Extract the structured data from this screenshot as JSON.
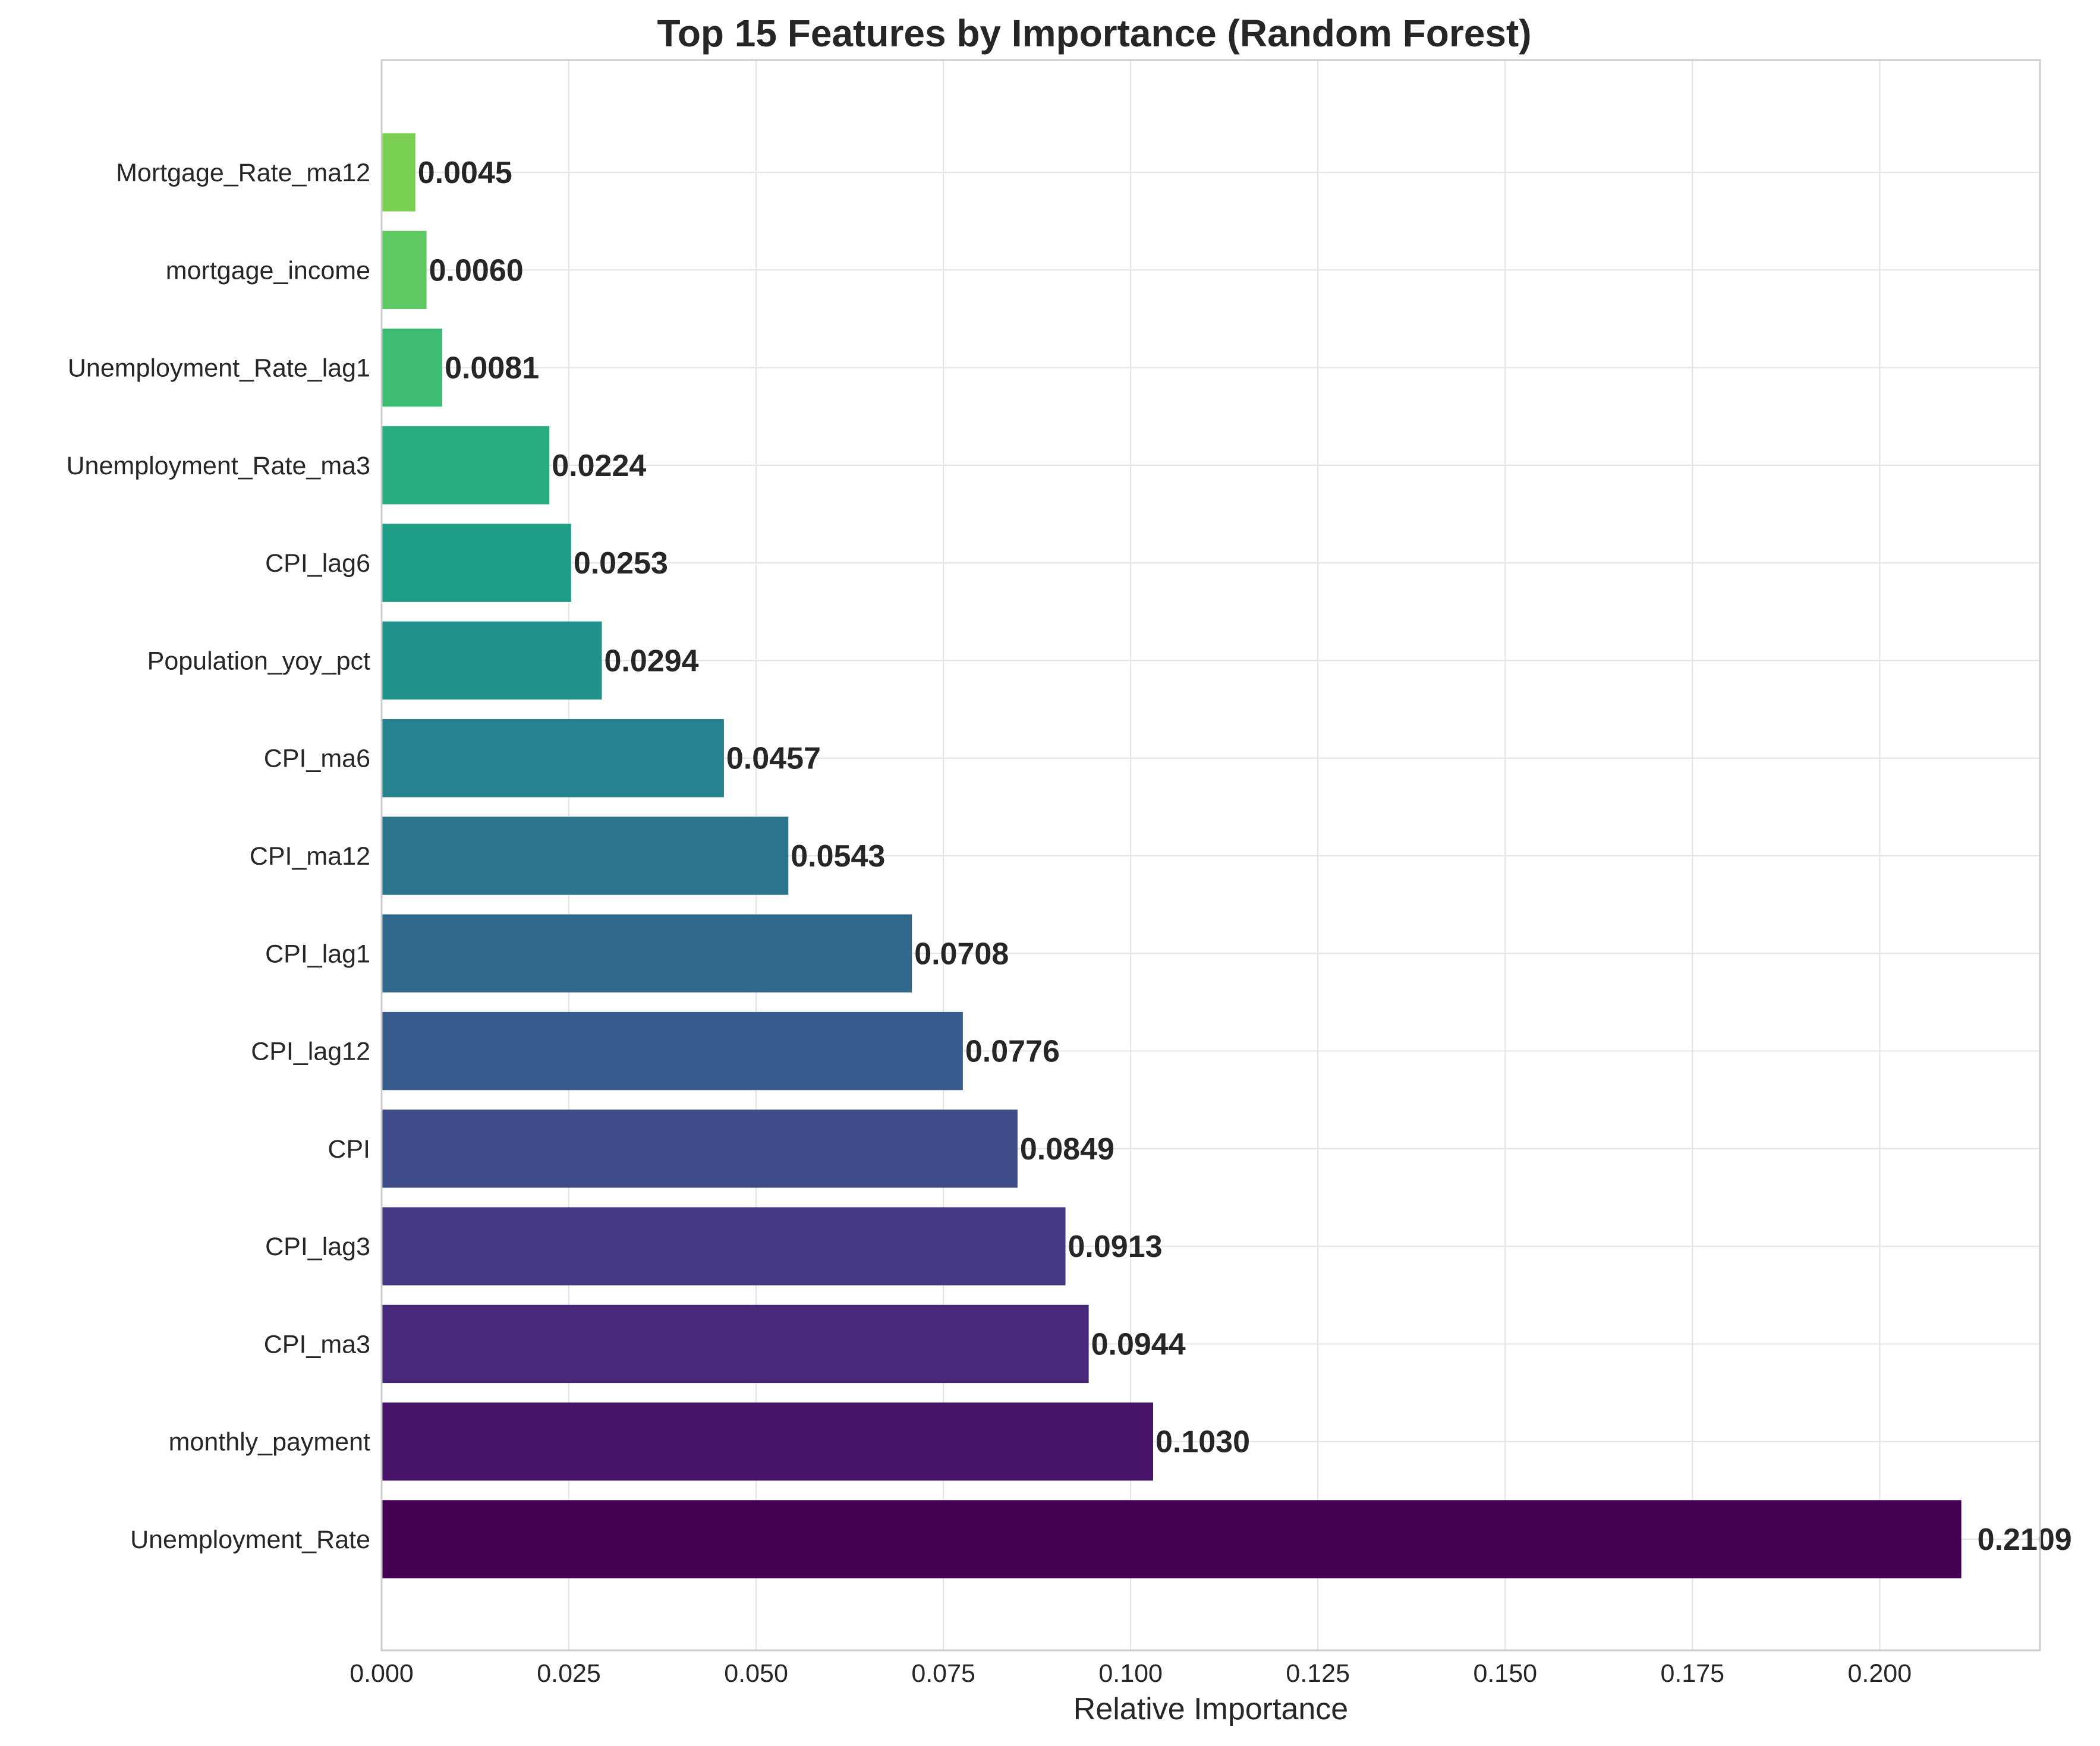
{
  "chart_data": {
    "type": "bar",
    "orientation": "horizontal",
    "title": "Top 15 Features by Importance (Random Forest)",
    "xlabel": "Relative Importance",
    "ylabel": "",
    "xlim": [
      0,
      0.2214
    ],
    "xticks": [
      0.0,
      0.025,
      0.05,
      0.075,
      0.1,
      0.125,
      0.15,
      0.175,
      0.2
    ],
    "xtick_labels": [
      "0.000",
      "0.025",
      "0.050",
      "0.075",
      "0.100",
      "0.125",
      "0.150",
      "0.175",
      "0.200"
    ],
    "grid": true,
    "colormap": "viridis",
    "categories": [
      "Unemployment_Rate",
      "monthly_payment",
      "CPI_ma3",
      "CPI_lag3",
      "CPI",
      "CPI_lag12",
      "CPI_lag1",
      "CPI_ma12",
      "CPI_ma6",
      "Population_yoy_pct",
      "CPI_lag6",
      "Unemployment_Rate_ma3",
      "Unemployment_Rate_lag1",
      "mortgage_income",
      "Mortgage_Rate_ma12"
    ],
    "values": [
      0.2109,
      0.103,
      0.0944,
      0.0913,
      0.0849,
      0.0776,
      0.0708,
      0.0543,
      0.0457,
      0.0294,
      0.0253,
      0.0224,
      0.0081,
      0.006,
      0.0045
    ],
    "value_labels": [
      "0.2109",
      "0.1030",
      "0.0944",
      "0.0913",
      "0.0849",
      "0.0776",
      "0.0708",
      "0.0543",
      "0.0457",
      "0.0294",
      "0.0253",
      "0.0224",
      "0.0081",
      "0.0060",
      "0.0045"
    ],
    "colors": [
      "#440154",
      "#481467",
      "#482878",
      "#443a83",
      "#3e4c8a",
      "#375b8d",
      "#31688e",
      "#2b758e",
      "#26828e",
      "#21918c",
      "#1f9e89",
      "#27ad81",
      "#3fbc73",
      "#5ec962",
      "#7ad151"
    ]
  }
}
